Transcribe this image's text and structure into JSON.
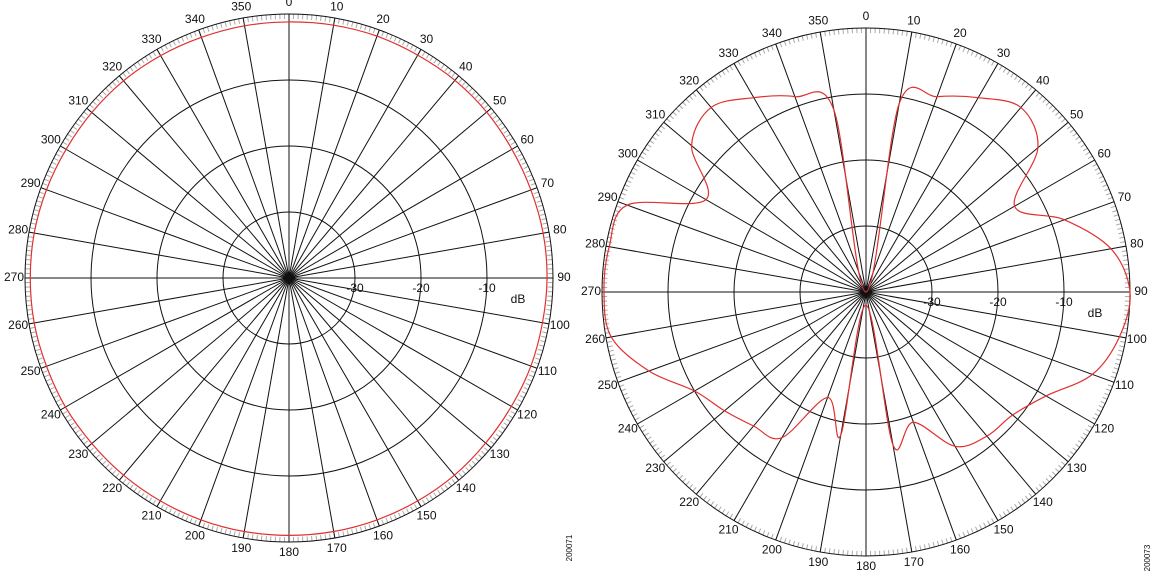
{
  "chart_data": [
    {
      "type": "polar",
      "theta": [
        0,
        10,
        20,
        30,
        40,
        50,
        60,
        70,
        80,
        90,
        100,
        110,
        120,
        130,
        140,
        150,
        160,
        170,
        180,
        190,
        200,
        210,
        220,
        230,
        240,
        250,
        260,
        270,
        280,
        290,
        300,
        310,
        320,
        330,
        340,
        350
      ],
      "series": [
        {
          "color": "#e03030",
          "values": [
            -1.2,
            -1.1,
            -1,
            -1,
            -0.9,
            -0.9,
            -1,
            -1,
            -0.9,
            -0.9,
            -1,
            -1,
            -1.1,
            -1.1,
            -1,
            -1,
            -1,
            -1,
            -1,
            -1,
            -1,
            -1,
            -1,
            -1,
            -0.9,
            -0.9,
            -0.8,
            -0.8,
            -0.8,
            -0.9,
            -1,
            -1,
            -1,
            -1.1,
            -1.2,
            -1.2
          ]
        }
      ],
      "thetaticks": [
        0,
        10,
        20,
        30,
        40,
        50,
        60,
        70,
        80,
        90,
        100,
        110,
        120,
        130,
        140,
        150,
        160,
        170,
        180,
        190,
        200,
        210,
        220,
        230,
        240,
        250,
        260,
        270,
        280,
        290,
        300,
        310,
        320,
        330,
        340,
        350
      ],
      "rlim": [
        -40,
        0
      ],
      "rticks": [
        -30,
        -20,
        -10
      ],
      "r_unit": "dB",
      "figure_id": "200071"
    },
    {
      "type": "polar",
      "theta": [
        0,
        10,
        20,
        30,
        40,
        50,
        60,
        70,
        80,
        90,
        100,
        110,
        120,
        130,
        140,
        150,
        160,
        170,
        180,
        190,
        200,
        210,
        220,
        230,
        240,
        250,
        260,
        270,
        280,
        290,
        300,
        310,
        320,
        330,
        340,
        350
      ],
      "series": [
        {
          "color": "#e03030",
          "values": [
            -40,
            -11,
            -8.5,
            -6,
            -3.5,
            -6,
            -14,
            -8,
            -2.3,
            0,
            -1,
            -3.5,
            -8.5,
            -11,
            -11.5,
            -13,
            -19,
            -16.5,
            -38,
            -18,
            -23,
            -14.5,
            -13.5,
            -12,
            -10,
            -5,
            -0.8,
            -0.3,
            -0.5,
            -1.5,
            -12,
            -5.5,
            -3.5,
            -6,
            -8.5,
            -12
          ]
        }
      ],
      "thetaticks": [
        0,
        10,
        20,
        30,
        40,
        50,
        60,
        70,
        80,
        90,
        100,
        110,
        120,
        130,
        140,
        150,
        160,
        170,
        180,
        190,
        200,
        210,
        220,
        230,
        240,
        250,
        260,
        270,
        280,
        290,
        300,
        310,
        320,
        330,
        340,
        350
      ],
      "rlim": [
        -40,
        0
      ],
      "rticks": [
        -30,
        -20,
        -10
      ],
      "r_unit": "dB",
      "figure_id": "200073"
    }
  ]
}
